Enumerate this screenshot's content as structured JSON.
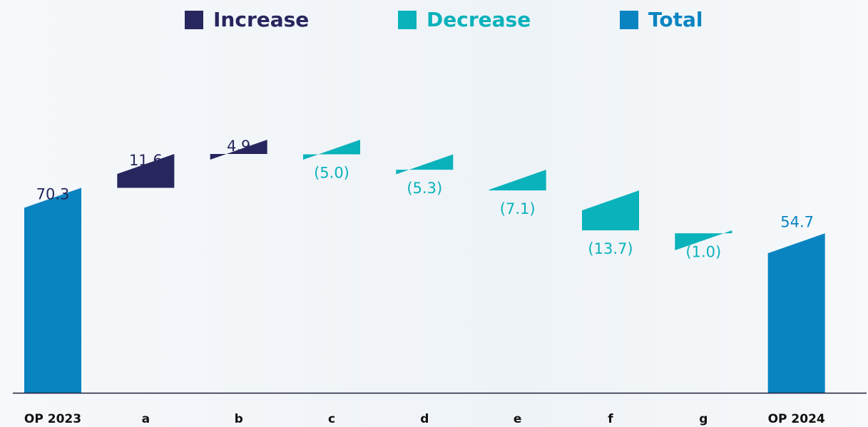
{
  "legend": {
    "increase_label": "Increase",
    "decrease_label": "Decrease",
    "total_label": "Total"
  },
  "colors": {
    "increase": "#27265e",
    "decrease": "#0ab2bb",
    "total": "#0a84c1",
    "axis": "#1f1f3a",
    "category_label": "#111111"
  },
  "chart_data": {
    "type": "bar",
    "subtype": "waterfall",
    "categories": [
      "OP 2023",
      "a",
      "b",
      "c",
      "d",
      "e",
      "f",
      "g",
      "OP 2024"
    ],
    "values": [
      70.3,
      11.6,
      4.9,
      -5.0,
      -5.3,
      -7.1,
      -13.7,
      -1.0,
      54.7
    ],
    "kinds": [
      "total",
      "increase",
      "increase",
      "decrease",
      "decrease",
      "decrease",
      "decrease",
      "decrease",
      "total"
    ],
    "data_labels": [
      "70.3",
      "11.6",
      "4.9",
      "(5.0)",
      "(5.3)",
      "(7.1)",
      "(13.7)",
      "(1.0)",
      "54.7"
    ],
    "legend": [
      "Increase",
      "Decrease",
      "Total"
    ],
    "legend_position": "top-center",
    "title": "",
    "xlabel": "",
    "ylabel": "",
    "grid": false
  }
}
